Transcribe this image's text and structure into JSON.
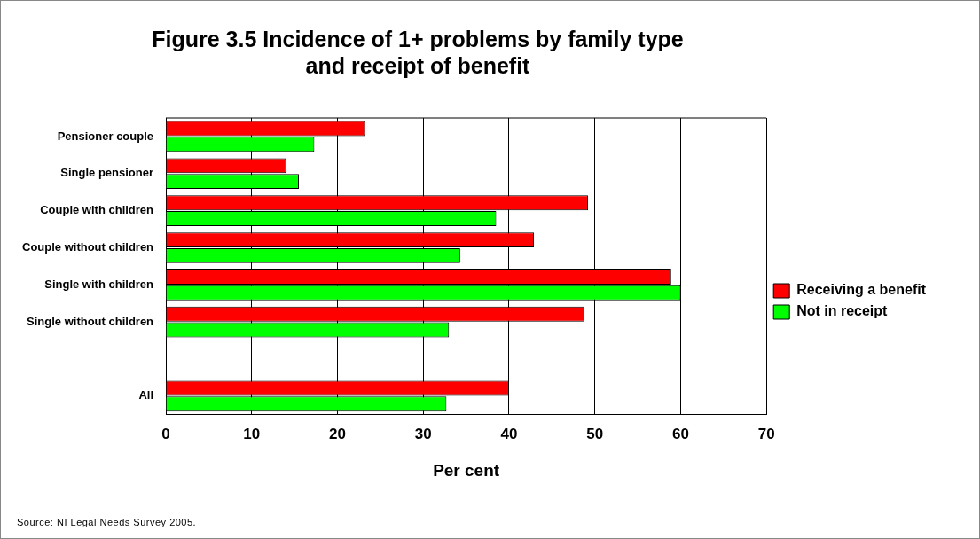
{
  "chart_data": {
    "type": "bar",
    "orientation": "horizontal",
    "title": "Figure 3.5 Incidence of 1+ problems by family type\nand receipt of benefit",
    "xlabel": "Per cent",
    "categories": [
      "Pensioner couple",
      "Single pensioner",
      "Couple with children",
      "Couple without children",
      "Single with children",
      "Single without children",
      null,
      "All"
    ],
    "series": [
      {
        "name": "Receiving a benefit",
        "color": "#ff0000",
        "values": [
          23.2,
          14,
          49.2,
          42.9,
          58.9,
          48.8,
          null,
          40
        ]
      },
      {
        "name": "Not in receipt",
        "color": "#00ff00",
        "values": [
          17.3,
          15.5,
          38.5,
          34.3,
          60,
          33,
          null,
          32.7
        ]
      }
    ],
    "xlim": [
      0,
      70
    ],
    "xticks": [
      0,
      10,
      20,
      30,
      40,
      50,
      60,
      70
    ],
    "grid": "x",
    "legend": "right",
    "annotations": [
      "Source: NI Legal Needs Survey 2005."
    ]
  }
}
